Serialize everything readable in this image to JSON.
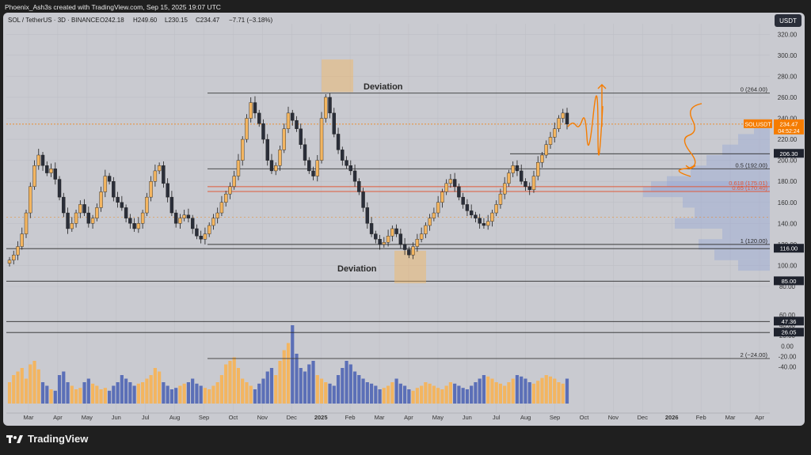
{
  "attribution": "Phoenix_Ash3s created with TradingView.com, Sep 15, 2025 19:07 UTC",
  "legend": {
    "symbol": "SOL / TetherUS · 3D · BINANCE",
    "open": "O242.18",
    "high": "H249.60",
    "low": "L230.15",
    "close": "C234.47",
    "change": "−7.71 (−3.18%)"
  },
  "currency_button": "USDT",
  "brand": "TradingView",
  "colors": {
    "up": "#f3b560",
    "down": "#2a2e39",
    "accent_orange": "#f57c00",
    "fib_red": "#e05a3a",
    "volume_up": "#f3b560",
    "volume_down": "#5b6fb7",
    "panel_bg": "#c9cad0"
  },
  "chart_data": {
    "type": "candlestick",
    "symbol": "SOL / TetherUS",
    "interval": "3D",
    "exchange": "BINANCE",
    "y_axis": {
      "min": 80,
      "max": 330,
      "ticks": [
        320,
        300,
        280,
        260,
        240,
        220,
        200,
        180,
        160,
        140,
        120,
        100,
        80
      ]
    },
    "volume_axis": {
      "ticks": [
        60,
        40,
        20,
        0,
        -20,
        -40
      ]
    },
    "x_axis": {
      "labels": [
        "Mar",
        "Apr",
        "May",
        "Jun",
        "Jul",
        "Aug",
        "Sep",
        "Oct",
        "Nov",
        "Dec",
        "2025",
        "Feb",
        "Mar",
        "Apr",
        "May",
        "Jun",
        "Jul",
        "Aug",
        "Sep",
        "Oct",
        "Nov",
        "Dec",
        "2026",
        "Feb",
        "Mar",
        "Apr"
      ]
    },
    "closes": [
      105,
      110,
      118,
      130,
      150,
      175,
      195,
      205,
      195,
      188,
      192,
      182,
      165,
      150,
      135,
      140,
      150,
      158,
      150,
      140,
      145,
      155,
      170,
      185,
      180,
      165,
      160,
      155,
      145,
      140,
      135,
      140,
      150,
      165,
      180,
      190,
      195,
      178,
      165,
      150,
      140,
      145,
      148,
      145,
      135,
      128,
      125,
      130,
      138,
      145,
      150,
      160,
      168,
      175,
      185,
      200,
      220,
      240,
      255,
      245,
      235,
      220,
      200,
      190,
      195,
      210,
      230,
      245,
      238,
      230,
      215,
      200,
      190,
      185,
      200,
      240,
      260,
      245,
      225,
      210,
      200,
      195,
      190,
      180,
      170,
      155,
      140,
      130,
      125,
      120,
      122,
      128,
      135,
      130,
      120,
      115,
      110,
      118,
      125,
      130,
      138,
      145,
      150,
      160,
      170,
      178,
      182,
      175,
      165,
      158,
      152,
      148,
      145,
      140,
      138,
      142,
      150,
      158,
      168,
      178,
      188,
      195,
      190,
      180,
      175,
      172,
      185,
      198,
      205,
      215,
      222,
      230,
      240,
      245,
      234.47
    ],
    "volumes": [
      30,
      40,
      45,
      50,
      35,
      55,
      60,
      48,
      30,
      25,
      20,
      18,
      40,
      45,
      30,
      25,
      20,
      22,
      30,
      35,
      28,
      25,
      20,
      22,
      18,
      25,
      30,
      40,
      35,
      30,
      25,
      28,
      30,
      35,
      40,
      50,
      45,
      30,
      25,
      20,
      22,
      25,
      28,
      30,
      35,
      28,
      25,
      22,
      20,
      25,
      30,
      40,
      55,
      60,
      65,
      50,
      35,
      30,
      25,
      20,
      28,
      35,
      45,
      50,
      40,
      60,
      75,
      85,
      110,
      70,
      50,
      45,
      55,
      60,
      40,
      35,
      30,
      28,
      25,
      40,
      50,
      60,
      55,
      45,
      40,
      35,
      30,
      28,
      25,
      20,
      22,
      25,
      30,
      35,
      28,
      25,
      20,
      18,
      22,
      25,
      30,
      28,
      25,
      22,
      20,
      25,
      30,
      28,
      25,
      22,
      20,
      25,
      30,
      35,
      40,
      38,
      35,
      30,
      28,
      25,
      30,
      35,
      40,
      38,
      35,
      30,
      28,
      32,
      36,
      40,
      38,
      35,
      30,
      28,
      35
    ],
    "price_levels": [
      {
        "label": "0 (264.00)",
        "value": 264
      },
      {
        "label": "0.5 (192.00)",
        "value": 192
      },
      {
        "label": "0.618 (175.01)",
        "value": 175.01
      },
      {
        "label": "0.65 (170.40)",
        "value": 170.4
      },
      {
        "label": "1 (120.00)",
        "value": 120
      },
      {
        "label": "2 (−24.00)",
        "value": -24
      }
    ],
    "axis_badges": [
      {
        "text": "SOLUSDT",
        "value": 234.47,
        "style": "orange"
      },
      {
        "text": "234.47",
        "value": 234.47,
        "style": "orange"
      },
      {
        "text": "04:52:24",
        "value": 234.47,
        "style": "orange"
      },
      {
        "text": "206.30",
        "value": 206.3,
        "style": "dark"
      },
      {
        "text": "116.00",
        "value": 116,
        "style": "dark"
      },
      {
        "text": "85.00",
        "value": 85,
        "style": "dark"
      },
      {
        "text": "47.36",
        "value": 47.36,
        "style": "dark"
      },
      {
        "text": "26.05",
        "value": 26.05,
        "style": "dark"
      }
    ],
    "annotations": [
      "Deviation",
      "Deviation"
    ]
  }
}
